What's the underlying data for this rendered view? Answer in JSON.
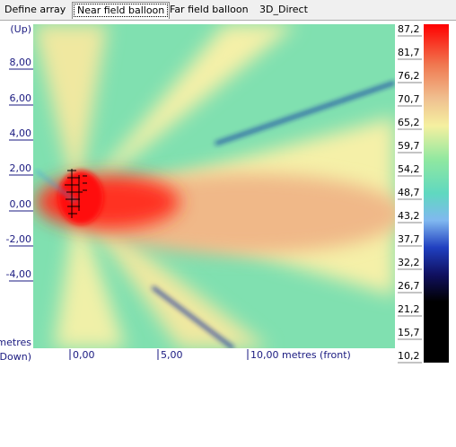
{
  "tabs": [
    "Define array",
    "Near field balloon",
    "Far field balloon",
    "3D_Direct"
  ],
  "left_axis": [
    "(Up)",
    "8,00",
    "6,00",
    "4,00",
    "2,00",
    "0,00",
    "-2,00",
    "-4,00",
    "metres",
    "(Down)"
  ],
  "bottom_axis": [
    "0,00",
    "5,00",
    "10,00 metres (front)"
  ],
  "color_scale": [
    "87,2",
    "81,7",
    "76,2",
    "70,7",
    "65,2",
    "59,7",
    "54,2",
    "48,7",
    "43,2",
    "37,7",
    "32,2",
    "26,7",
    "21,2",
    "15,7",
    "10,2"
  ]
}
